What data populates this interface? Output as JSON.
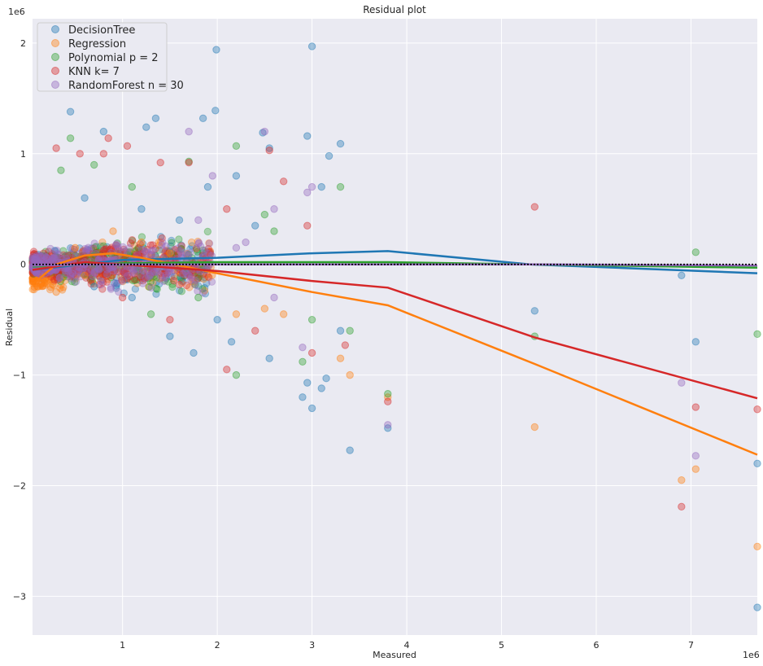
{
  "chart_data": {
    "type": "scatter",
    "title": "Residual plot",
    "xlabel": "Measured",
    "ylabel": "Residual",
    "x_offset_label": "1e6",
    "y_offset_label": "1e6",
    "xlim": [
      0.05,
      7.7
    ],
    "ylim": [
      -3.35,
      2.22
    ],
    "x_ticks": [
      1,
      2,
      3,
      4,
      5,
      6,
      7
    ],
    "y_ticks": [
      2,
      1,
      0,
      -1,
      -2,
      -3
    ],
    "x_tick_labels": [
      "1",
      "2",
      "3",
      "4",
      "5",
      "6",
      "7"
    ],
    "y_tick_labels": [
      "2",
      "1",
      "0",
      "−1",
      "−2",
      "−3"
    ],
    "grid": true,
    "legend_position": "top-left",
    "zero_line": {
      "y": 0,
      "style": "dotted",
      "color": "#000000"
    },
    "series": [
      {
        "name": "DecisionTree",
        "color": "#1f77b4",
        "points": [
          [
            0.45,
            1.38
          ],
          [
            0.8,
            1.2
          ],
          [
            1.25,
            1.24
          ],
          [
            1.35,
            1.32
          ],
          [
            1.85,
            1.32
          ],
          [
            1.98,
            1.39
          ],
          [
            1.99,
            1.94
          ],
          [
            3.0,
            1.97
          ],
          [
            2.95,
            1.16
          ],
          [
            2.48,
            1.19
          ],
          [
            2.55,
            1.05
          ],
          [
            3.18,
            0.98
          ],
          [
            3.3,
            1.09
          ],
          [
            3.1,
            0.7
          ],
          [
            2.2,
            0.8
          ],
          [
            1.9,
            0.7
          ],
          [
            0.6,
            0.6
          ],
          [
            1.2,
            0.5
          ],
          [
            1.6,
            0.4
          ],
          [
            2.4,
            0.35
          ],
          [
            0.7,
            -0.2
          ],
          [
            1.1,
            -0.3
          ],
          [
            1.5,
            -0.65
          ],
          [
            1.75,
            -0.8
          ],
          [
            2.15,
            -0.7
          ],
          [
            2.55,
            -0.85
          ],
          [
            2.9,
            -1.2
          ],
          [
            2.95,
            -1.07
          ],
          [
            3.0,
            -1.3
          ],
          [
            3.1,
            -1.12
          ],
          [
            3.15,
            -1.03
          ],
          [
            3.4,
            -1.68
          ],
          [
            3.8,
            -1.48
          ],
          [
            3.3,
            -0.6
          ],
          [
            5.35,
            -0.42
          ],
          [
            6.9,
            -0.1
          ],
          [
            7.05,
            -0.7
          ],
          [
            7.7,
            -1.8
          ],
          [
            7.7,
            -3.1
          ],
          [
            2.0,
            -0.5
          ]
        ],
        "trend": [
          [
            0.05,
            -0.05
          ],
          [
            1.0,
            0.04
          ],
          [
            2.0,
            0.06
          ],
          [
            3.0,
            0.1
          ],
          [
            3.8,
            0.12
          ],
          [
            5.3,
            0.0
          ],
          [
            7.7,
            -0.08
          ]
        ]
      },
      {
        "name": "Regression",
        "color": "#ff7f0e",
        "points": [
          [
            0.1,
            -0.2
          ],
          [
            0.2,
            -0.15
          ],
          [
            0.3,
            -0.25
          ],
          [
            0.5,
            0.15
          ],
          [
            0.6,
            -0.1
          ],
          [
            0.9,
            0.3
          ],
          [
            1.2,
            0.2
          ],
          [
            1.5,
            0.1
          ],
          [
            2.2,
            -0.45
          ],
          [
            2.5,
            -0.4
          ],
          [
            2.7,
            -0.45
          ],
          [
            3.3,
            -0.85
          ],
          [
            3.4,
            -1.0
          ],
          [
            3.8,
            -1.2
          ],
          [
            5.35,
            -1.47
          ],
          [
            6.9,
            -1.95
          ],
          [
            7.05,
            -1.85
          ],
          [
            7.7,
            -2.55
          ]
        ],
        "trend": [
          [
            0.05,
            -0.18
          ],
          [
            0.3,
            0.0
          ],
          [
            0.6,
            0.08
          ],
          [
            0.9,
            0.1
          ],
          [
            1.2,
            0.06
          ],
          [
            2.0,
            -0.08
          ],
          [
            3.0,
            -0.25
          ],
          [
            3.8,
            -0.37
          ],
          [
            5.35,
            -0.9
          ],
          [
            7.7,
            -1.72
          ]
        ]
      },
      {
        "name": "Polynomial p = 2",
        "color": "#2ca02c",
        "points": [
          [
            0.35,
            0.85
          ],
          [
            0.45,
            1.14
          ],
          [
            0.7,
            0.9
          ],
          [
            1.1,
            0.7
          ],
          [
            1.7,
            0.93
          ],
          [
            2.2,
            1.07
          ],
          [
            2.5,
            0.45
          ],
          [
            2.6,
            0.3
          ],
          [
            3.3,
            0.7
          ],
          [
            2.2,
            -1.0
          ],
          [
            2.9,
            -0.88
          ],
          [
            3.0,
            -0.5
          ],
          [
            3.4,
            -0.6
          ],
          [
            3.8,
            -1.17
          ],
          [
            5.35,
            -0.65
          ],
          [
            7.05,
            0.11
          ],
          [
            7.7,
            -0.63
          ],
          [
            1.3,
            -0.45
          ],
          [
            1.8,
            -0.3
          ]
        ],
        "trend": [
          [
            0.05,
            -0.02
          ],
          [
            1.0,
            0.01
          ],
          [
            2.0,
            0.02
          ],
          [
            3.0,
            0.02
          ],
          [
            3.8,
            0.02
          ],
          [
            5.3,
            0.0
          ],
          [
            7.7,
            -0.03
          ]
        ]
      },
      {
        "name": "KNN k= 7",
        "color": "#d62728",
        "points": [
          [
            0.3,
            1.05
          ],
          [
            0.55,
            1.0
          ],
          [
            0.8,
            1.0
          ],
          [
            0.85,
            1.14
          ],
          [
            1.05,
            1.07
          ],
          [
            1.4,
            0.92
          ],
          [
            1.7,
            0.92
          ],
          [
            2.55,
            1.03
          ],
          [
            2.1,
            0.5
          ],
          [
            2.7,
            0.75
          ],
          [
            2.95,
            0.35
          ],
          [
            1.5,
            -0.5
          ],
          [
            2.1,
            -0.95
          ],
          [
            2.4,
            -0.6
          ],
          [
            3.0,
            -0.8
          ],
          [
            3.35,
            -0.73
          ],
          [
            3.8,
            -1.24
          ],
          [
            5.35,
            0.52
          ],
          [
            6.9,
            -2.19
          ],
          [
            7.05,
            -1.29
          ],
          [
            7.7,
            -1.31
          ],
          [
            1.0,
            -0.3
          ]
        ],
        "trend": [
          [
            0.05,
            -0.05
          ],
          [
            0.6,
            0.02
          ],
          [
            1.0,
            0.0
          ],
          [
            2.0,
            -0.06
          ],
          [
            3.0,
            -0.15
          ],
          [
            3.8,
            -0.21
          ],
          [
            5.35,
            -0.66
          ],
          [
            7.7,
            -1.21
          ]
        ]
      },
      {
        "name": "RandomForest n = 30",
        "color": "#9467bd",
        "points": [
          [
            1.7,
            1.2
          ],
          [
            1.95,
            0.8
          ],
          [
            2.5,
            1.2
          ],
          [
            3.0,
            0.7
          ],
          [
            2.95,
            0.65
          ],
          [
            2.6,
            0.5
          ],
          [
            2.3,
            0.2
          ],
          [
            1.4,
            -0.1
          ],
          [
            2.6,
            -0.3
          ],
          [
            2.9,
            -0.75
          ],
          [
            3.8,
            -1.45
          ],
          [
            6.9,
            -1.07
          ],
          [
            7.05,
            -1.73
          ],
          [
            1.8,
            0.4
          ],
          [
            2.2,
            0.15
          ]
        ],
        "trend": [
          [
            0.05,
            -0.01
          ],
          [
            1.0,
            0.0
          ],
          [
            2.0,
            0.0
          ],
          [
            3.0,
            0.0
          ],
          [
            4.0,
            0.0
          ],
          [
            5.3,
            0.0
          ],
          [
            7.7,
            -0.01
          ]
        ]
      }
    ]
  }
}
